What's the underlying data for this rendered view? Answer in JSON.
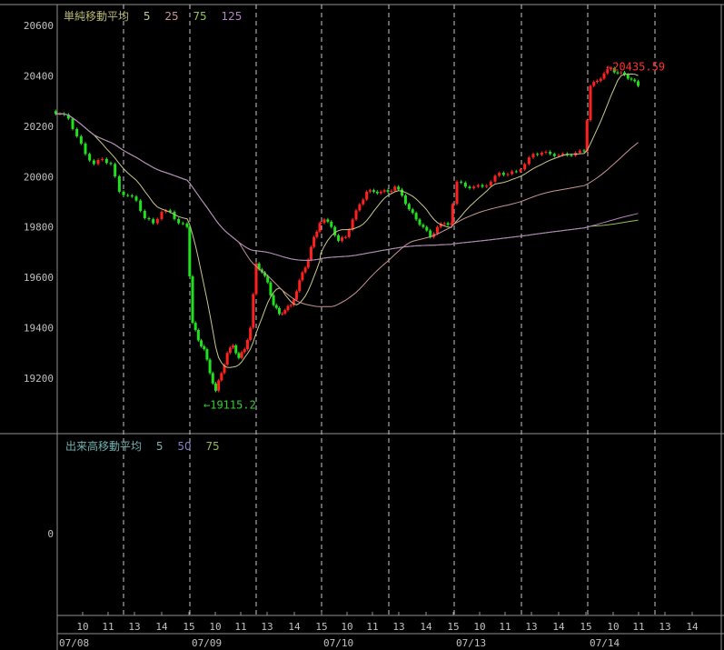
{
  "chart_data": {
    "type": "candlestick",
    "price_panel": {
      "legend_title": "単純移動平均",
      "legend_title_color": "#b8b870",
      "moving_averages": [
        {
          "label": "5",
          "period": 5,
          "color": "#c8c88c"
        },
        {
          "label": "25",
          "period": 25,
          "color": "#c89494"
        },
        {
          "label": "75",
          "period": 75,
          "color": "#94c050"
        },
        {
          "label": "125",
          "period": 125,
          "color": "#b484c4"
        }
      ],
      "ylim": [
        19000,
        20660
      ],
      "y_ticks": [
        "20600",
        "20400",
        "20200",
        "20000",
        "19800",
        "19600",
        "19400",
        "19200"
      ],
      "y_tick_values": [
        20600,
        20400,
        20200,
        20000,
        19800,
        19600,
        19400,
        19200
      ],
      "up_color": "#ff2020",
      "down_color": "#20e020",
      "high_annotation": {
        "text": "←20435.59",
        "value": 20435.59,
        "color": "#ff3030"
      },
      "low_annotation": {
        "text": "←19115.2",
        "value": 19115.2,
        "color": "#30d030"
      },
      "days": [
        {
          "date": "07/08",
          "closes": [
            20250,
            20230,
            20160,
            20090,
            20050,
            20070,
            20050,
            19940,
            19925,
            19905,
            19835,
            19815,
            19860,
            19860,
            19815,
            19800
          ]
        },
        {
          "date": "07/09",
          "closes": [
            19420,
            19350,
            19315,
            19220,
            19150,
            19220,
            19300,
            19330,
            19280,
            19315,
            19400,
            19655,
            19620,
            19580,
            19490,
            19455,
            19470,
            19490,
            19545,
            19620,
            19670,
            19760,
            19815
          ]
        },
        {
          "date": "07/10",
          "closes": [
            19830,
            19800,
            19745,
            19760,
            19830,
            19890,
            19940,
            19940,
            19940,
            19940,
            19960,
            19925,
            19870,
            19830,
            19800,
            19760,
            19800,
            19815,
            19815
          ]
        },
        {
          "date": "07/13",
          "closes": [
            19980,
            19960,
            19960,
            19960,
            19980,
            20015,
            20010,
            20020,
            20050,
            20090,
            20095,
            20090,
            20085,
            20085,
            20095,
            20100
          ]
        },
        {
          "date": "07/14",
          "closes": [
            20360,
            20380,
            20410,
            20430,
            20410,
            20405,
            20385,
            20360
          ]
        }
      ]
    },
    "volume_panel": {
      "legend_title": "出来高移動平均",
      "legend_title_color": "#70b0b0",
      "moving_averages": [
        {
          "label": "5",
          "color": "#80b0b0"
        },
        {
          "label": "50",
          "color": "#8080c8"
        },
        {
          "label": "75",
          "color": "#94b850"
        }
      ],
      "y_ticks": [
        "0"
      ]
    },
    "x_axis": {
      "hour_ticks": [
        "10",
        "11",
        "13",
        "14",
        "15"
      ],
      "last_day_hour_ticks": [
        "10",
        "11",
        "13",
        "14"
      ],
      "dates": [
        "07/08",
        "07/09",
        "07/10",
        "07/13",
        "07/14"
      ]
    }
  }
}
